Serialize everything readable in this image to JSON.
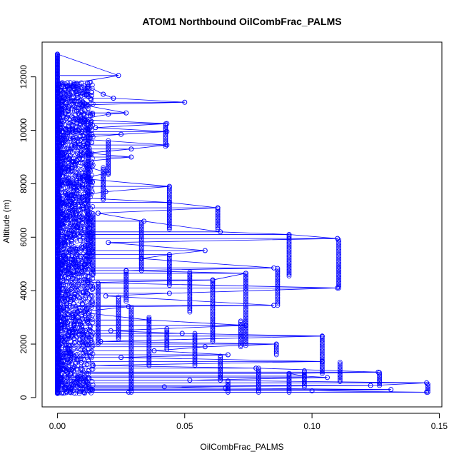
{
  "chart_data": {
    "type": "scatter",
    "title": "ATOM1 Northbound OilCombFrac_PALMS",
    "xlabel": "OilCombFrac_PALMS",
    "ylabel": "Altitude (m)",
    "xlim": [
      -0.006,
      0.151
    ],
    "ylim": [
      -350,
      13300
    ],
    "xticks": [
      0.0,
      0.05,
      0.1,
      0.15
    ],
    "xtick_labels": [
      "0.00",
      "0.05",
      "0.10",
      "0.15"
    ],
    "yticks": [
      0,
      2000,
      4000,
      6000,
      8000,
      10000,
      12000
    ],
    "ytick_labels": [
      "0",
      "2000",
      "4000",
      "6000",
      "8000",
      "10000",
      "12000"
    ],
    "grid": false,
    "legend": "none",
    "marker": "open-circle",
    "connected": true,
    "color": "#0000ff",
    "series": [
      {
        "points": [
          {
            "x": 0.0,
            "y": 200
          },
          {
            "x": 0.0,
            "y": 800
          },
          {
            "x": 0.0,
            "y": 1500
          },
          {
            "x": 0.0,
            "y": 2400
          },
          {
            "x": 0.0,
            "y": 3300
          },
          {
            "x": 0.0,
            "y": 4200
          },
          {
            "x": 0.0,
            "y": 5100
          },
          {
            "x": 0.0,
            "y": 6000
          },
          {
            "x": 0.0,
            "y": 7000
          },
          {
            "x": 0.0,
            "y": 8000
          },
          {
            "x": 0.0,
            "y": 9000
          },
          {
            "x": 0.0,
            "y": 10000
          },
          {
            "x": 0.0,
            "y": 11000
          },
          {
            "x": 0.0,
            "y": 12000
          },
          {
            "x": 0.0,
            "y": 12850
          },
          {
            "x": 0.024,
            "y": 12050
          },
          {
            "x": 0.002,
            "y": 11700
          },
          {
            "x": 0.012,
            "y": 11650
          },
          {
            "x": 0.018,
            "y": 11350
          },
          {
            "x": 0.022,
            "y": 11200
          },
          {
            "x": 0.05,
            "y": 11050
          },
          {
            "x": 0.01,
            "y": 10950
          },
          {
            "x": 0.027,
            "y": 10650
          },
          {
            "x": 0.02,
            "y": 10600
          },
          {
            "x": 0.008,
            "y": 10400
          },
          {
            "x": 0.043,
            "y": 10250
          },
          {
            "x": 0.015,
            "y": 10100
          },
          {
            "x": 0.043,
            "y": 9950
          },
          {
            "x": 0.025,
            "y": 9850
          },
          {
            "x": 0.005,
            "y": 9700
          },
          {
            "x": 0.043,
            "y": 9450
          },
          {
            "x": 0.029,
            "y": 9300
          },
          {
            "x": 0.012,
            "y": 9150
          },
          {
            "x": 0.029,
            "y": 9000
          },
          {
            "x": 0.006,
            "y": 8800
          },
          {
            "x": 0.02,
            "y": 8400
          },
          {
            "x": 0.009,
            "y": 8200
          },
          {
            "x": 0.044,
            "y": 7900
          },
          {
            "x": 0.019,
            "y": 7700
          },
          {
            "x": 0.004,
            "y": 7500
          },
          {
            "x": 0.044,
            "y": 7300
          },
          {
            "x": 0.063,
            "y": 7100
          },
          {
            "x": 0.016,
            "y": 6900
          },
          {
            "x": 0.034,
            "y": 6600
          },
          {
            "x": 0.064,
            "y": 6200
          },
          {
            "x": 0.091,
            "y": 6100
          },
          {
            "x": 0.11,
            "y": 5950
          },
          {
            "x": 0.02,
            "y": 5800
          },
          {
            "x": 0.058,
            "y": 5500
          },
          {
            "x": 0.044,
            "y": 5350
          },
          {
            "x": 0.033,
            "y": 5200
          },
          {
            "x": 0.085,
            "y": 4850
          },
          {
            "x": 0.027,
            "y": 4750
          },
          {
            "x": 0.074,
            "y": 4650
          },
          {
            "x": 0.061,
            "y": 4400
          },
          {
            "x": 0.012,
            "y": 4300
          },
          {
            "x": 0.11,
            "y": 4100
          },
          {
            "x": 0.044,
            "y": 3900
          },
          {
            "x": 0.019,
            "y": 3800
          },
          {
            "x": 0.085,
            "y": 3450
          },
          {
            "x": 0.028,
            "y": 3400
          },
          {
            "x": 0.008,
            "y": 3200
          },
          {
            "x": 0.036,
            "y": 2900
          },
          {
            "x": 0.074,
            "y": 2700
          },
          {
            "x": 0.021,
            "y": 2500
          },
          {
            "x": 0.049,
            "y": 2400
          },
          {
            "x": 0.104,
            "y": 2300
          },
          {
            "x": 0.017,
            "y": 2100
          },
          {
            "x": 0.086,
            "y": 2000
          },
          {
            "x": 0.058,
            "y": 1900
          },
          {
            "x": 0.038,
            "y": 1750
          },
          {
            "x": 0.067,
            "y": 1600
          },
          {
            "x": 0.025,
            "y": 1500
          },
          {
            "x": 0.104,
            "y": 1350
          },
          {
            "x": 0.014,
            "y": 1200
          },
          {
            "x": 0.078,
            "y": 1100
          },
          {
            "x": 0.126,
            "y": 950
          },
          {
            "x": 0.091,
            "y": 900
          },
          {
            "x": 0.097,
            "y": 800
          },
          {
            "x": 0.106,
            "y": 750
          },
          {
            "x": 0.052,
            "y": 650
          },
          {
            "x": 0.145,
            "y": 550
          },
          {
            "x": 0.123,
            "y": 450
          },
          {
            "x": 0.042,
            "y": 400
          },
          {
            "x": 0.066,
            "y": 350
          },
          {
            "x": 0.131,
            "y": 300
          },
          {
            "x": 0.1,
            "y": 250
          },
          {
            "x": 0.145,
            "y": 200
          },
          {
            "x": 0.028,
            "y": 200
          },
          {
            "x": 0.005,
            "y": 200
          }
        ],
        "columns": [
          {
            "x": 0.0425,
            "y0": 9400,
            "y1": 10250
          },
          {
            "x": 0.044,
            "y0": 6300,
            "y1": 7900
          },
          {
            "x": 0.063,
            "y0": 6300,
            "y1": 7100
          },
          {
            "x": 0.091,
            "y0": 4550,
            "y1": 6100
          },
          {
            "x": 0.1105,
            "y0": 4100,
            "y1": 5950
          },
          {
            "x": 0.0865,
            "y0": 3450,
            "y1": 4850
          },
          {
            "x": 0.074,
            "y0": 1950,
            "y1": 4650
          },
          {
            "x": 0.061,
            "y0": 2100,
            "y1": 4400
          },
          {
            "x": 0.052,
            "y0": 3200,
            "y1": 4700
          },
          {
            "x": 0.044,
            "y0": 4200,
            "y1": 5350
          },
          {
            "x": 0.033,
            "y0": 4750,
            "y1": 6600
          },
          {
            "x": 0.027,
            "y0": 3600,
            "y1": 4750
          },
          {
            "x": 0.104,
            "y0": 900,
            "y1": 2300
          },
          {
            "x": 0.086,
            "y0": 1600,
            "y1": 2000
          },
          {
            "x": 0.072,
            "y0": 1900,
            "y1": 2900
          },
          {
            "x": 0.064,
            "y0": 650,
            "y1": 1600
          },
          {
            "x": 0.054,
            "y0": 1200,
            "y1": 2400
          },
          {
            "x": 0.043,
            "y0": 1800,
            "y1": 2600
          },
          {
            "x": 0.036,
            "y0": 1200,
            "y1": 3000
          },
          {
            "x": 0.1265,
            "y0": 450,
            "y1": 950
          },
          {
            "x": 0.1455,
            "y0": 200,
            "y1": 550
          },
          {
            "x": 0.111,
            "y0": 600,
            "y1": 1350
          },
          {
            "x": 0.097,
            "y0": 400,
            "y1": 1050
          },
          {
            "x": 0.091,
            "y0": 200,
            "y1": 900
          },
          {
            "x": 0.079,
            "y0": 200,
            "y1": 1100
          },
          {
            "x": 0.067,
            "y0": 200,
            "y1": 650
          },
          {
            "x": 0.029,
            "y0": 200,
            "y1": 3400
          },
          {
            "x": 0.02,
            "y0": 8350,
            "y1": 9650
          },
          {
            "x": 0.018,
            "y0": 7400,
            "y1": 8600
          },
          {
            "x": 0.024,
            "y0": 2200,
            "y1": 3800
          },
          {
            "x": 0.014,
            "y0": 4600,
            "y1": 6900
          },
          {
            "x": 0.016,
            "y0": 2000,
            "y1": 4300
          },
          {
            "x": 0.012,
            "y0": 5000,
            "y1": 10200
          }
        ],
        "near_zero_band": {
          "x_min": 0.0,
          "x_max": 0.014,
          "y_min": 150,
          "y_max": 11800
        }
      }
    ]
  }
}
